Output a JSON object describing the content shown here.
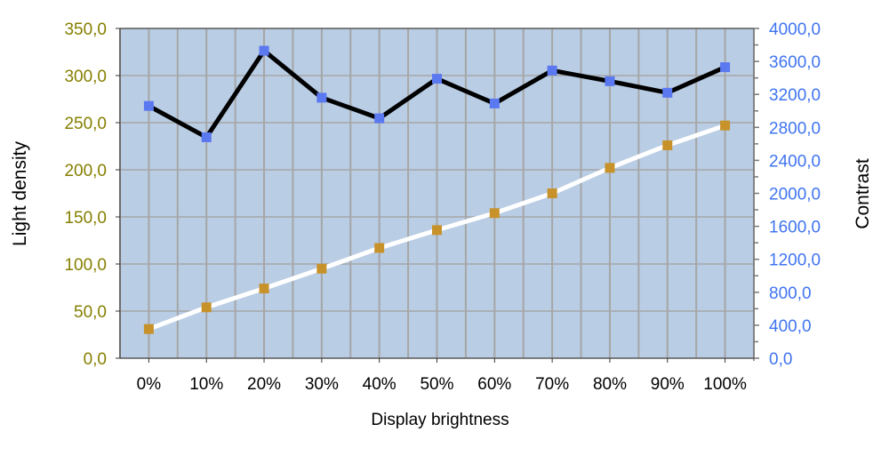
{
  "chart_data": {
    "type": "line",
    "title": "",
    "xlabel": "Display brightness",
    "ylabel": "Light density",
    "y2label": "Contrast",
    "categories": [
      "0%",
      "10%",
      "20%",
      "30%",
      "40%",
      "50%",
      "60%",
      "70%",
      "80%",
      "90%",
      "100%"
    ],
    "ylim": [
      0,
      350
    ],
    "y2lim": [
      0,
      4000
    ],
    "yticks": [
      "0,0",
      "50,0",
      "100,0",
      "150,0",
      "200,0",
      "250,0",
      "300,0",
      "350,0"
    ],
    "y2ticks": [
      "0,0",
      "400,0",
      "800,0",
      "1200,0",
      "1600,0",
      "2000,0",
      "2400,0",
      "2800,0",
      "3200,0",
      "3600,0",
      "4000,0"
    ],
    "grid": true,
    "series": [
      {
        "name": "Light density",
        "axis": "left",
        "values": [
          31,
          54,
          74,
          95,
          117,
          136,
          154,
          175,
          202,
          226,
          247
        ],
        "line_color": "#ffffff",
        "marker_color": "#c8922a"
      },
      {
        "name": "Contrast",
        "axis": "right",
        "values": [
          3060,
          2680,
          3730,
          3160,
          2910,
          3390,
          3090,
          3490,
          3360,
          3220,
          3530
        ],
        "line_color": "#000000",
        "marker_color": "#5a78f0"
      }
    ],
    "colors": {
      "plot_bg": "#b9cde5",
      "grid": "#a6a6a6",
      "left_axis_text": "#857f00",
      "right_axis_text": "#3f74f0"
    }
  }
}
